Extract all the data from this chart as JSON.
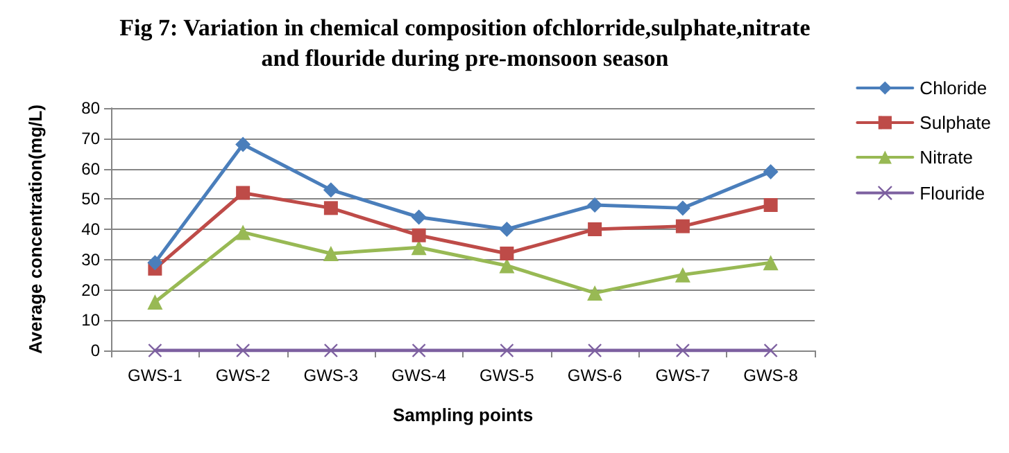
{
  "chart_data": {
    "type": "line",
    "title": "Fig 7: Variation in chemical composition ofchlorride,sulphate,nitrate\nand flouride during pre-monsoon season",
    "xlabel": "Sampling points",
    "ylabel": "Average concentration(mg/L)",
    "categories": [
      "GWS-1",
      "GWS-2",
      "GWS-3",
      "GWS-4",
      "GWS-5",
      "GWS-6",
      "GWS-7",
      "GWS-8"
    ],
    "series": [
      {
        "name": "Chloride",
        "color": "#4a7ebb",
        "marker": "diamond",
        "values": [
          29,
          68,
          53,
          44,
          40,
          48,
          47,
          59
        ]
      },
      {
        "name": "Sulphate",
        "color": "#be4b48",
        "marker": "square",
        "values": [
          27,
          52,
          47,
          38,
          32,
          40,
          41,
          48
        ]
      },
      {
        "name": "Nitrate",
        "color": "#98b954",
        "marker": "triangle",
        "values": [
          16,
          39,
          32,
          34,
          28,
          19,
          25,
          29
        ]
      },
      {
        "name": "Flouride",
        "color": "#7d60a0",
        "marker": "cross",
        "values": [
          0,
          0,
          0,
          0,
          0,
          0,
          0,
          0
        ]
      }
    ],
    "ylim": [
      0,
      80
    ],
    "yticks": [
      0,
      10,
      20,
      30,
      40,
      50,
      60,
      70,
      80
    ],
    "grid": "y",
    "legend": "right",
    "line_style": "solid"
  }
}
